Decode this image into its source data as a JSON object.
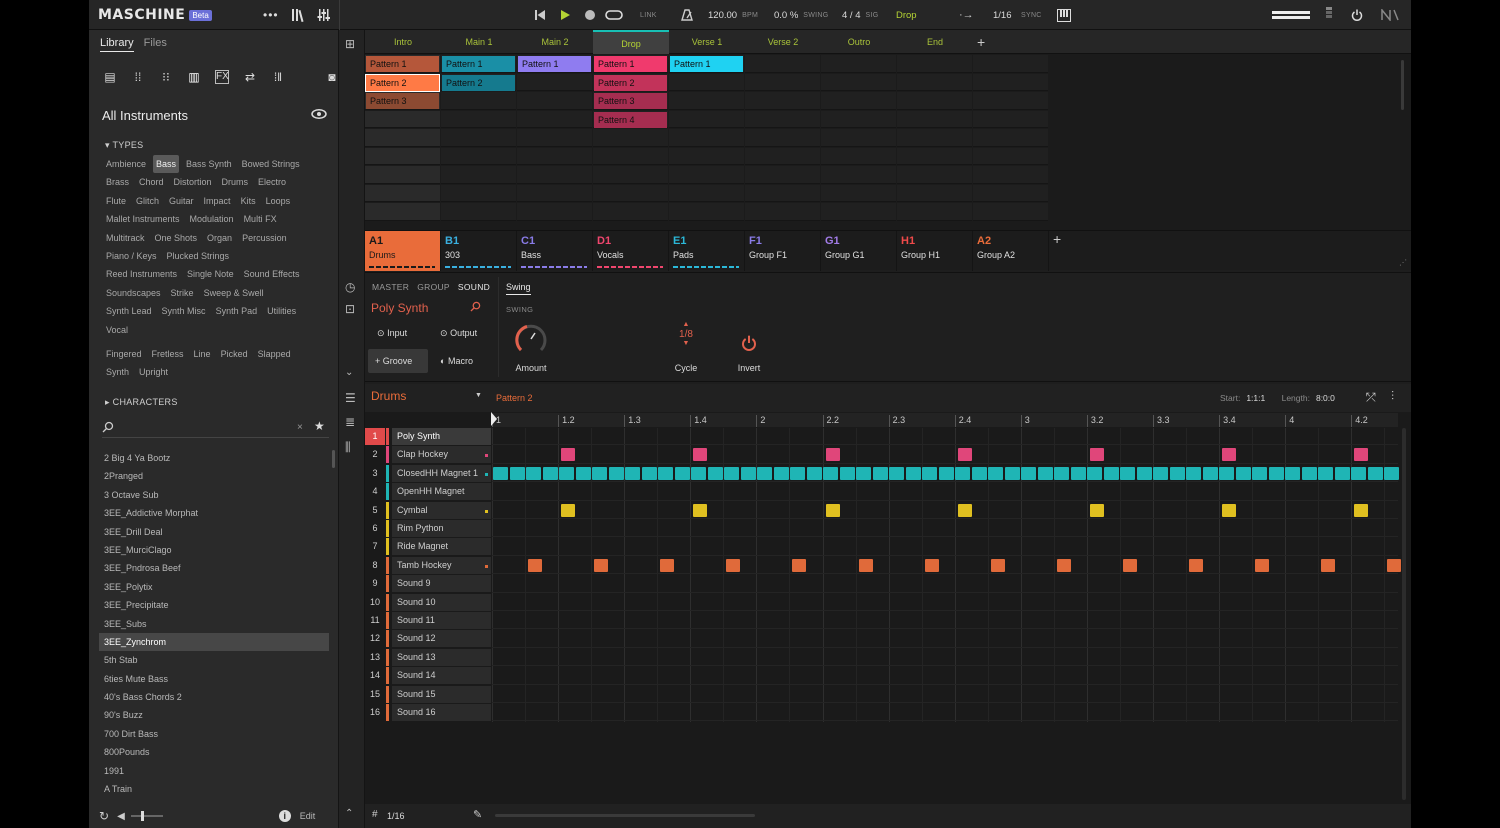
{
  "header": {
    "logo": "MASCHINE",
    "beta": "Beta",
    "link": "LINK",
    "bpm_value": "120.00",
    "bpm_label": "BPM",
    "swing_value": "0.0 %",
    "swing_label": "SWING",
    "sig_value": "4  /  4",
    "sig_label": "SIG",
    "scene": "Drop",
    "quantize": "1/16",
    "sync": "SYNC"
  },
  "browser": {
    "tabs": [
      "Library",
      "Files"
    ],
    "title": "All Instruments",
    "types_header": "TYPES",
    "types": [
      [
        "Ambience",
        "Bass",
        "Bass Synth",
        "Bowed Strings"
      ],
      [
        "Brass",
        "Chord",
        "Distortion",
        "Drums",
        "Electro"
      ],
      [
        "Flute",
        "Glitch",
        "Guitar",
        "Impact",
        "Kits",
        "Loops"
      ],
      [
        "Mallet Instruments",
        "Modulation",
        "Multi FX"
      ],
      [
        "Multitrack",
        "One Shots",
        "Organ",
        "Percussion"
      ],
      [
        "Piano / Keys",
        "Plucked Strings"
      ],
      [
        "Reed Instruments",
        "Single Note",
        "Sound Effects"
      ],
      [
        "Soundscapes",
        "Strike",
        "Sweep & Swell"
      ],
      [
        "Synth Lead",
        "Synth Misc",
        "Synth Pad",
        "Utilities"
      ],
      [
        "Vocal"
      ]
    ],
    "selected_type": "Bass",
    "subtypes": [
      [
        "Fingered",
        "Fretless",
        "Line",
        "Picked",
        "Slapped"
      ],
      [
        "Synth",
        "Upright"
      ]
    ],
    "characters_header": "CHARACTERS",
    "search_value": "",
    "results": [
      "2 Big 4 Ya Bootz",
      "2Pranged",
      "3 Octave Sub",
      "3EE_Addictive Morphat",
      "3EE_Drill Deal",
      "3EE_MurciClago",
      "3EE_Pndrosa Beef",
      "3EE_Polytix",
      "3EE_Precipitate",
      "3EE_Subs",
      "3EE_Zynchrom",
      "5th Stab",
      "6ties Mute Bass",
      "40's Bass Chords 2",
      "90's Buzz",
      "700 Dirt Bass",
      "800Pounds",
      "1991",
      "A Train"
    ],
    "selected_result": "3EE_Zynchrom",
    "edit_label": "Edit"
  },
  "arranger": {
    "scenes": [
      "Intro",
      "Main 1",
      "Main 2",
      "Drop",
      "Verse 1",
      "Verse 2",
      "Outro",
      "End"
    ],
    "selected_scene": "Drop",
    "patterns": [
      {
        "col": 0,
        "row": 0,
        "label": "Pattern 1",
        "color": "#b5573a"
      },
      {
        "col": 0,
        "row": 1,
        "label": "Pattern 2",
        "color": "#ff7a45",
        "selected": true
      },
      {
        "col": 0,
        "row": 2,
        "label": "Pattern 3",
        "color": "#8c4a32"
      },
      {
        "col": 1,
        "row": 0,
        "label": "Pattern 1",
        "color": "#1a8fa6"
      },
      {
        "col": 1,
        "row": 1,
        "label": "Pattern 2",
        "color": "#157a8e"
      },
      {
        "col": 2,
        "row": 0,
        "label": "Pattern 1",
        "color": "#8f7cf0"
      },
      {
        "col": 3,
        "row": 0,
        "label": "Pattern 1",
        "color": "#f03a6d"
      },
      {
        "col": 3,
        "row": 1,
        "label": "Pattern 2",
        "color": "#c2335a"
      },
      {
        "col": 3,
        "row": 2,
        "label": "Pattern 3",
        "color": "#a52d50"
      },
      {
        "col": 3,
        "row": 3,
        "label": "Pattern 4",
        "color": "#a52d50"
      },
      {
        "col": 4,
        "row": 0,
        "label": "Pattern 1",
        "color": "#1fd2f2"
      }
    ],
    "groups": [
      {
        "id": "A1",
        "name": "Drums",
        "color": "#e96c3a",
        "selected": true
      },
      {
        "id": "B1",
        "name": "303",
        "color": "#3ab0e0"
      },
      {
        "id": "C1",
        "name": "Bass",
        "color": "#8a7ce8"
      },
      {
        "id": "D1",
        "name": "Vocals",
        "color": "#f0466e"
      },
      {
        "id": "E1",
        "name": "Pads",
        "color": "#2bb8d8"
      },
      {
        "id": "F1",
        "name": "Group F1",
        "color": "#8a7ce8"
      },
      {
        "id": "G1",
        "name": "Group G1",
        "color": "#a27ce8"
      },
      {
        "id": "H1",
        "name": "Group H1",
        "color": "#f04a4a"
      },
      {
        "id": "A2",
        "name": "Group A2",
        "color": "#e96c3a"
      }
    ]
  },
  "control": {
    "tabs": [
      "MASTER",
      "GROUP",
      "SOUND"
    ],
    "active_tab": "SOUND",
    "sound_name": "Poly Synth",
    "buttons": [
      "Input",
      "Output",
      "Groove",
      "Macro"
    ],
    "selected_button": "Groove",
    "page_tab": "Swing",
    "section_label": "SWING",
    "amount_label": "Amount",
    "cycle_value": "1/8",
    "cycle_label": "Cycle",
    "invert_label": "Invert"
  },
  "editor": {
    "group_name": "Drums",
    "pattern_name": "Pattern 2",
    "start_label": "Start:",
    "start_value": "1:1:1",
    "length_label": "Length:",
    "length_value": "8:0:0",
    "grid_label": "1/16",
    "ruler": [
      "1",
      "1.2",
      "1.3",
      "1.4",
      "2",
      "2.2",
      "2.3",
      "2.4",
      "3",
      "3.2",
      "3.3",
      "3.4",
      "4",
      "4.2"
    ],
    "sounds": [
      {
        "num": "1",
        "name": "Poly Synth",
        "color": "#e14a4a",
        "selected": true
      },
      {
        "num": "2",
        "name": "Clap Hockey",
        "color": "#e0467a",
        "notes": [
          2,
          6,
          10,
          14,
          18,
          22,
          26
        ]
      },
      {
        "num": "3",
        "name": "ClosedHH Magnet 1",
        "color": "#1fb5b5",
        "notes": "all"
      },
      {
        "num": "4",
        "name": "OpenHH Magnet",
        "color": "#1fb5b5"
      },
      {
        "num": "5",
        "name": "Cymbal",
        "color": "#e0c020",
        "notes": [
          2,
          6,
          10,
          14,
          18,
          22,
          26
        ]
      },
      {
        "num": "6",
        "name": "Rim Python",
        "color": "#e0c020"
      },
      {
        "num": "7",
        "name": "Ride Magnet",
        "color": "#e0c020"
      },
      {
        "num": "8",
        "name": "Tamb Hockey",
        "color": "#e06a3a",
        "notes": [
          1,
          3,
          5,
          7,
          9,
          11,
          13,
          15,
          17,
          19,
          21,
          23,
          25,
          27
        ]
      },
      {
        "num": "9",
        "name": "Sound 9",
        "color": "#e06a3a"
      },
      {
        "num": "10",
        "name": "Sound 10",
        "color": "#e06a3a"
      },
      {
        "num": "11",
        "name": "Sound 11",
        "color": "#e06a3a"
      },
      {
        "num": "12",
        "name": "Sound 12",
        "color": "#e06a3a"
      },
      {
        "num": "13",
        "name": "Sound 13",
        "color": "#e06a3a"
      },
      {
        "num": "14",
        "name": "Sound 14",
        "color": "#e06a3a"
      },
      {
        "num": "15",
        "name": "Sound 15",
        "color": "#e06a3a"
      },
      {
        "num": "16",
        "name": "Sound 16",
        "color": "#e06a3a"
      }
    ]
  }
}
